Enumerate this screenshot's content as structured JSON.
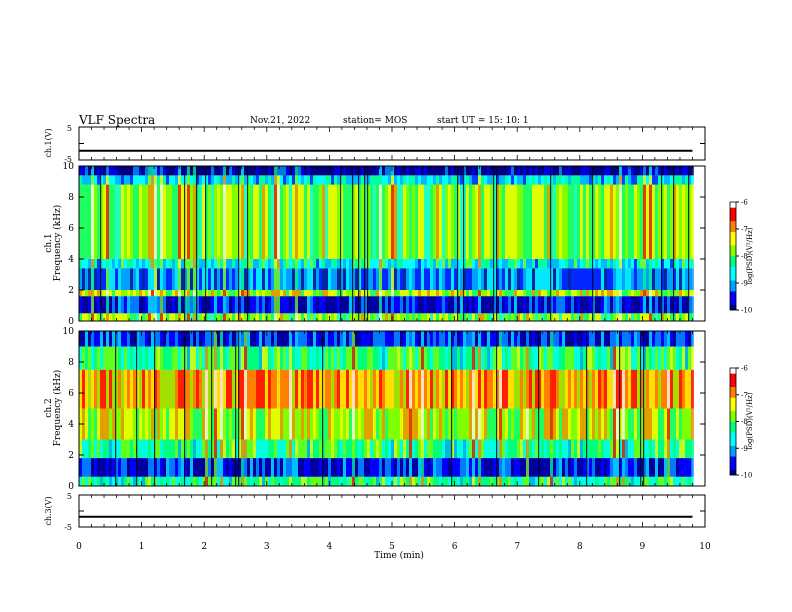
{
  "header": {
    "title": "VLF Spectra",
    "date": "Nov.21, 2022",
    "station": "station= MOS",
    "start": "start  UT =   15: 10: 1"
  },
  "chart_data": [
    {
      "type": "line",
      "panel": "ch1-waveform",
      "ylabel": "ch.1(V)",
      "ylim": [
        -5,
        5
      ],
      "yticks": [
        "5",
        "-5"
      ],
      "series": [
        {
          "x": [
            0,
            9.8
          ],
          "y": [
            -2.2,
            -2.2
          ]
        }
      ]
    },
    {
      "type": "heatmap",
      "panel": "ch1-spectrogram",
      "ylabel": "Frequency (kHz)",
      "ylabel_prefix": "ch.1",
      "ylim": [
        0,
        10
      ],
      "yticks": [
        "0",
        "2",
        "4",
        "6",
        "8",
        "10"
      ],
      "xlim": [
        0,
        9.8
      ],
      "colorbar": {
        "label": "log(PSD)(V²/Hz)",
        "range": [
          -10,
          -6
        ],
        "ticks": [
          "-6",
          "-7",
          "-8",
          "-9",
          "-10"
        ]
      },
      "bands": [
        {
          "f": [
            0,
            0.5
          ],
          "level": -7.8
        },
        {
          "f": [
            0.5,
            1.6
          ],
          "level": -9.6
        },
        {
          "f": [
            1.6,
            2.0
          ],
          "level": -7.6
        },
        {
          "f": [
            2.0,
            3.4
          ],
          "level": -9.3
        },
        {
          "f": [
            3.4,
            4.0
          ],
          "level": -8.6
        },
        {
          "f": [
            4.0,
            8.8
          ],
          "level": -7.8
        },
        {
          "f": [
            8.8,
            9.4
          ],
          "level": -8.8
        },
        {
          "f": [
            9.4,
            10
          ],
          "level": -10
        }
      ]
    },
    {
      "type": "heatmap",
      "panel": "ch2-spectrogram",
      "ylabel": "Frequency (kHz)",
      "ylabel_prefix": "ch.2",
      "ylim": [
        0,
        10
      ],
      "yticks": [
        "0",
        "2",
        "4",
        "6",
        "8",
        "10"
      ],
      "xlim": [
        0,
        9.8
      ],
      "colorbar": {
        "label": "log(PSD)(V²/Hz)",
        "range": [
          -10,
          -6
        ],
        "ticks": [
          "-6",
          "-7",
          "-8",
          "-9",
          "-10"
        ]
      },
      "bands": [
        {
          "f": [
            0,
            0.6
          ],
          "level": -8.3
        },
        {
          "f": [
            0.6,
            1.8
          ],
          "level": -9.6
        },
        {
          "f": [
            1.8,
            3.0
          ],
          "level": -8.2
        },
        {
          "f": [
            3.0,
            5.0
          ],
          "level": -7.6
        },
        {
          "f": [
            5.0,
            7.5
          ],
          "level": -7.1
        },
        {
          "f": [
            7.5,
            9.0
          ],
          "level": -8.2
        },
        {
          "f": [
            9.0,
            10
          ],
          "level": -9.5
        }
      ]
    },
    {
      "type": "line",
      "panel": "ch3-waveform",
      "ylabel": "ch.3(V)",
      "ylim": [
        -5,
        5
      ],
      "yticks": [
        "5",
        "-5"
      ],
      "series": [
        {
          "x": [
            0,
            9.8
          ],
          "y": [
            -1.8,
            -1.8
          ]
        }
      ]
    }
  ],
  "xaxis": {
    "label": "Time (min)",
    "ticks": [
      "0",
      "1",
      "2",
      "3",
      "4",
      "5",
      "6",
      "7",
      "8",
      "9",
      "10"
    ],
    "range": [
      0,
      10
    ]
  },
  "colors": {
    "colormap": [
      "#000080",
      "#0000ff",
      "#00a0ff",
      "#00ffff",
      "#00ff80",
      "#80ff00",
      "#ffff00",
      "#ff8000",
      "#ff0000",
      "#ffffff"
    ]
  }
}
